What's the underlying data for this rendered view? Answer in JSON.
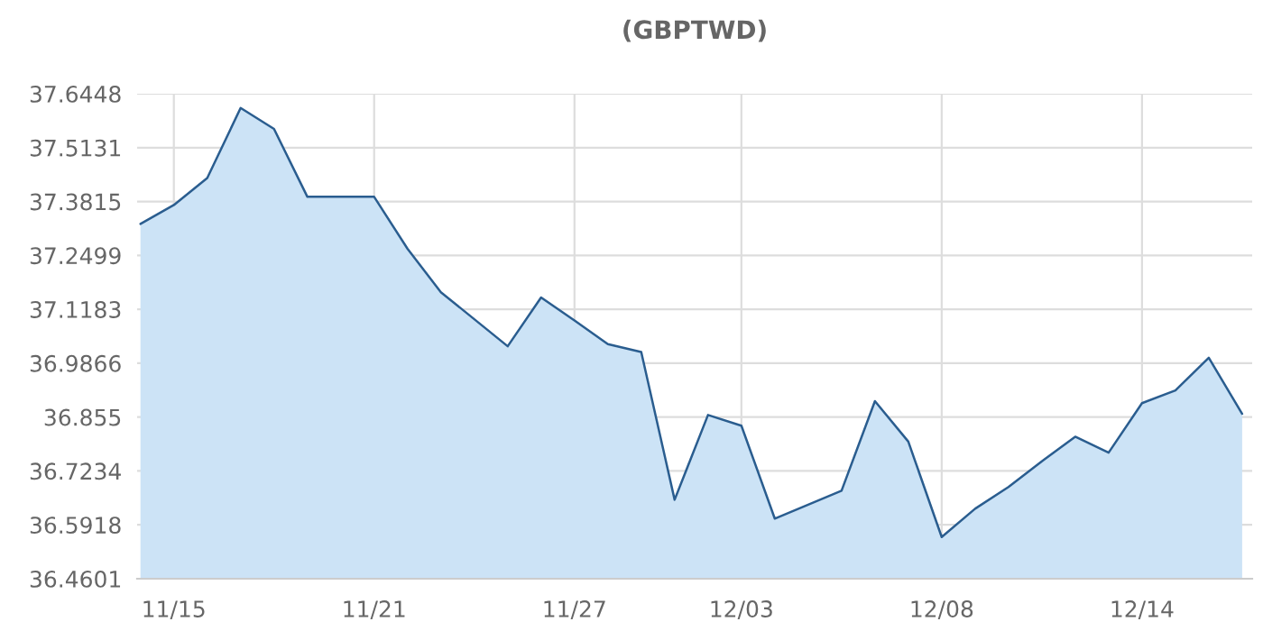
{
  "chart_data": {
    "type": "area",
    "title": "(GBPTWD)",
    "categories": [
      null,
      "11/15",
      null,
      null,
      null,
      null,
      null,
      "11/21",
      null,
      null,
      null,
      null,
      null,
      "11/27",
      null,
      null,
      null,
      null,
      "12/03",
      null,
      null,
      null,
      null,
      null,
      "12/08",
      null,
      null,
      null,
      null,
      null,
      "12/14",
      null,
      null,
      null
    ],
    "series": [
      {
        "color": "#2a5d8f",
        "values": [
          37.327,
          37.373,
          37.439,
          37.61,
          37.559,
          37.393,
          37.393,
          37.393,
          37.266,
          37.16,
          37.094,
          37.028,
          37.147,
          37.091,
          37.033,
          37.014,
          36.653,
          36.86,
          36.834,
          36.607,
          36.641,
          36.675,
          36.894,
          36.795,
          36.562,
          36.631,
          36.684,
          36.747,
          36.807,
          36.768,
          36.889,
          36.92,
          37.0,
          36.863
        ]
      }
    ],
    "ylim": [
      36.4601,
      37.6448
    ],
    "yticks": [
      36.4601,
      36.5918,
      36.7234,
      36.855,
      36.9866,
      37.1183,
      37.2499,
      37.3815,
      37.5131,
      37.6448
    ],
    "grid": true
  }
}
